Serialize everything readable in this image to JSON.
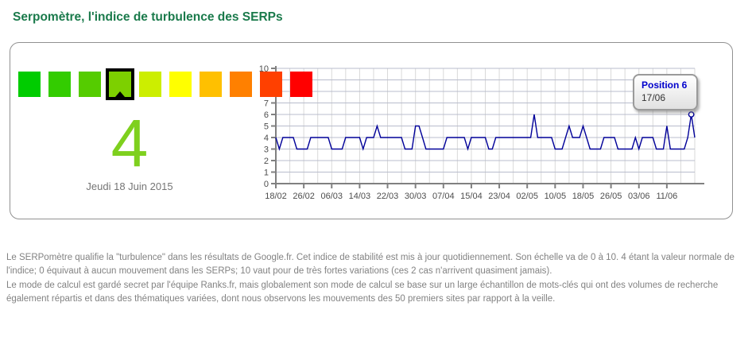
{
  "page_title": "Serpomètre, l'indice de turbulence des SERPs",
  "gauge": {
    "scale_colors": [
      "#00CC00",
      "#33CC00",
      "#55CC00",
      "#7DD000",
      "#CCEE00",
      "#FFFF00",
      "#FFC000",
      "#FF8000",
      "#FF4000",
      "#FF0000"
    ],
    "active_index": 3,
    "value": "4",
    "value_color": "#7ED01E",
    "date_label": "Jeudi 18 Juin 2015"
  },
  "chart_data": {
    "type": "line",
    "title": "",
    "xlabel": "",
    "ylabel": "",
    "ylim": [
      0,
      10
    ],
    "y_ticks": [
      0,
      1,
      2,
      3,
      4,
      5,
      6,
      7,
      8,
      9,
      10
    ],
    "x_tick_labels": [
      "18/02",
      "26/02",
      "06/03",
      "14/03",
      "22/03",
      "30/03",
      "07/04",
      "15/04",
      "23/04",
      "02/05",
      "10/05",
      "18/05",
      "26/05",
      "03/06",
      "11/06"
    ],
    "x_tick_interval_days": 8,
    "x_minor_grid_interval_days": 4,
    "grid": true,
    "line_color": "#000099",
    "axis_color": "#808080",
    "values_by_day": [
      4,
      3,
      4,
      4,
      4,
      4,
      3,
      3,
      3,
      3,
      4,
      4,
      4,
      4,
      4,
      4,
      3,
      3,
      3,
      3,
      4,
      4,
      4,
      4,
      4,
      3,
      4,
      4,
      4,
      5,
      4,
      4,
      4,
      4,
      4,
      4,
      4,
      3,
      3,
      3,
      5,
      5,
      4,
      3,
      3,
      3,
      3,
      3,
      3,
      4,
      4,
      4,
      4,
      4,
      4,
      3,
      4,
      4,
      4,
      4,
      4,
      3,
      3,
      4,
      4,
      4,
      4,
      4,
      4,
      4,
      4,
      4,
      4,
      4,
      6,
      4,
      4,
      4,
      4,
      4,
      3,
      3,
      3,
      4,
      5,
      4,
      4,
      4,
      5,
      4,
      3,
      3,
      3,
      3,
      4,
      4,
      4,
      4,
      3,
      3,
      3,
      3,
      3,
      4,
      3,
      4,
      4,
      4,
      4,
      3,
      3,
      3,
      5,
      3,
      3,
      3,
      3,
      3,
      4,
      6,
      4
    ],
    "highlight": {
      "day_index": 119,
      "value": 6
    }
  },
  "tooltip": {
    "title": "Position 6",
    "title_color": "#0000CC",
    "date": "17/06"
  },
  "footer": {
    "paragraph1": "Le SERPomètre qualifie la \"turbulence\" dans les résultats de Google.fr. Cet indice de stabilité est mis à jour quotidiennement. Son échelle va de 0 à 10. 4 étant la valeur normale de l'indice; 0 équivaut à aucun mouvement dans les SERPs; 10 vaut pour de très fortes variations (ces 2 cas n'arrivent quasiment jamais).",
    "paragraph2": "Le mode de calcul est gardé secret par l'équipe Ranks.fr, mais globalement son mode de calcul se base sur un large échantillon de mots-clés qui ont des volumes de recherche également répartis et dans des thématiques variées, dont nous observons les mouvements des 50 premiers sites par rapport à la veille."
  }
}
